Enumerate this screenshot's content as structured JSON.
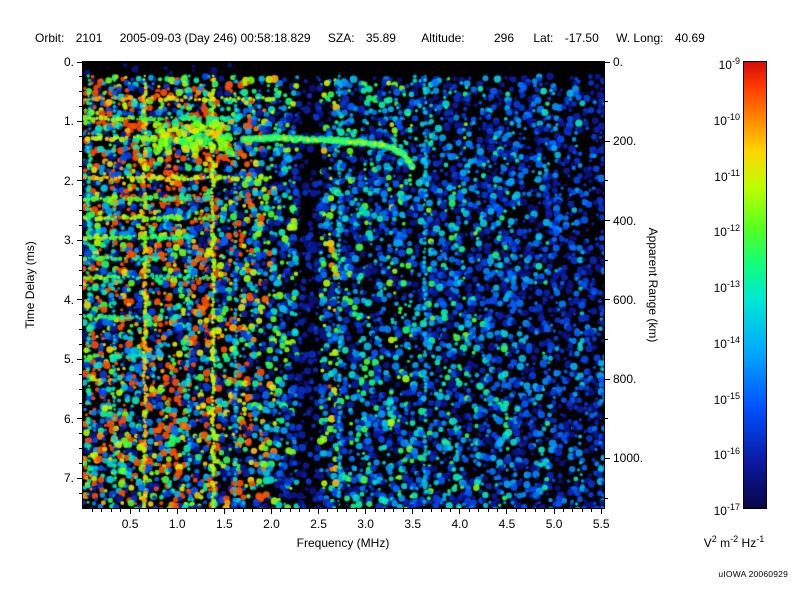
{
  "header": {
    "orbit_label": "Orbit:",
    "orbit_value": "2101",
    "datetime": "2005-09-03 (Day 246) 00:58:18.829",
    "sza_label": "SZA:",
    "sza_value": "35.89",
    "altitude_label": "Altitude:",
    "altitude_value": "296",
    "lat_label": "Lat:",
    "lat_value": "-17.50",
    "wlong_label": "W. Long:",
    "wlong_value": "40.69"
  },
  "plot": {
    "xlabel": "Frequency (MHz)",
    "ylabel_left": "Time Delay (ms)",
    "ylabel_right": "Apparent Range (km)",
    "x_tick_labels": [
      "0.5",
      "1.0",
      "1.5",
      "2.0",
      "2.5",
      "3.0",
      "3.5",
      "4.0",
      "4.5",
      "5.0",
      "5.5"
    ],
    "y_tick_labels_left": [
      "0.",
      "1.",
      "2.",
      "3.",
      "4.",
      "5.",
      "6.",
      "7."
    ],
    "y_tick_labels_right": [
      "0.",
      "200.",
      "400.",
      "600.",
      "800.",
      "1000."
    ]
  },
  "colorbar": {
    "tick_exponents": [
      -9,
      -10,
      -11,
      -12,
      -13,
      -14,
      -15,
      -16,
      -17
    ],
    "unit_parts": [
      [
        "V",
        "2"
      ],
      [
        "m",
        "-2"
      ],
      [
        "Hz",
        "-1"
      ]
    ]
  },
  "credit": "uIOWA 20060929",
  "chart_data": {
    "type": "heatmap",
    "description": "AIS ionogram: radar echo spectral density vs sounding frequency and time delay",
    "xlabel": "Frequency (MHz)",
    "xlim": [
      0,
      5.53
    ],
    "x_ticks": [
      0.5,
      1.0,
      1.5,
      2.0,
      2.5,
      3.0,
      3.5,
      4.0,
      4.5,
      5.0,
      5.5
    ],
    "ylabel": "Time Delay (ms)",
    "ylim": [
      0,
      7.5
    ],
    "y_ticks": [
      0,
      1,
      2,
      3,
      4,
      5,
      6,
      7
    ],
    "y2label": "Apparent Range (km)",
    "y2_ticks_km": [
      0,
      200,
      400,
      600,
      800,
      1000
    ],
    "color_scale": {
      "type": "log",
      "min": 1e-17,
      "max": 1e-09,
      "unit": "V^2 m^-2 Hz^-1",
      "tick_values": [
        1e-09,
        1e-10,
        1e-11,
        1e-12,
        1e-13,
        1e-14,
        1e-15,
        1e-16,
        1e-17
      ]
    },
    "grid": false,
    "background": "black",
    "features": {
      "plasma_harmonic_lines_mhz": [
        0.655,
        1.38
      ],
      "faint_vertical_lines_mhz": [
        0.06,
        0.33,
        1.12,
        1.62,
        2.72,
        3.63
      ],
      "cyclotron_echo_delays_ms": [
        0.62,
        0.95,
        1.28,
        1.95,
        2.3,
        2.62,
        2.95,
        3.3,
        3.62,
        4.3,
        4.95
      ],
      "ionosphere_echo_trace": [
        [
          1.7,
          1.3
        ],
        [
          2.0,
          1.28
        ],
        [
          2.35,
          1.3
        ],
        [
          2.65,
          1.32
        ],
        [
          2.95,
          1.35
        ],
        [
          3.15,
          1.39
        ],
        [
          3.3,
          1.45
        ],
        [
          3.42,
          1.58
        ],
        [
          3.5,
          1.78
        ]
      ],
      "attenuation_band_mhz": [
        2.3,
        2.5
      ],
      "noise_region_mhz": [
        0.0,
        1.7
      ]
    }
  }
}
